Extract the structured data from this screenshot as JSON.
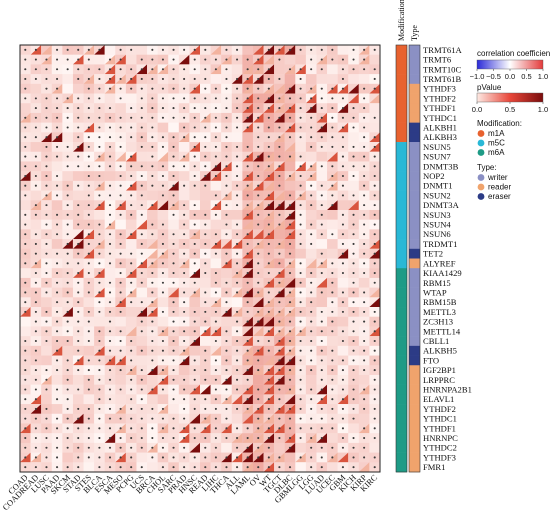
{
  "chart_data": {
    "type": "heatmap",
    "title": "",
    "rows": [
      "TRMT61A",
      "TRMT6",
      "TRMT10C",
      "TRMT61B",
      "YTHDF3",
      "YTHDF2",
      "YTHDF1",
      "YTHDC1",
      "ALKBH1",
      "ALKBH3",
      "NSUN5",
      "NSUN7",
      "DNMT3B",
      "NOP2",
      "DNMT1",
      "NSUN2",
      "DNMT3A",
      "NSUN3",
      "NSUN4",
      "NSUN6",
      "TRDMT1",
      "TET2",
      "ALYREF",
      "KIAA1429",
      "RBM15",
      "WTAP",
      "RBM15B",
      "METTL3",
      "ZC3H13",
      "METTL14",
      "CBLL1",
      "ALKBH5",
      "FTO",
      "IGF2BP1",
      "LRPPRC",
      "HNRNPA2B1",
      "ELAVL1",
      "YTHDF2",
      "YTHDC1",
      "YTHDF1",
      "HNRNPC",
      "YTHDC2",
      "YTHDF3",
      "FMR1"
    ],
    "columns": [
      "COAD",
      "COADREAD",
      "LUSC",
      "PAAD",
      "SKCM",
      "STAD",
      "STES",
      "BLCA",
      "ESCA",
      "MESO",
      "PCPG",
      "UCS",
      "BRCA",
      "CHOL",
      "SARC",
      "PRAD",
      "HNSC",
      "READ",
      "LIHC",
      "THCA",
      "ALL",
      "LAML",
      "OV",
      "WT",
      "TGCT",
      "DLBC",
      "GBMLGG",
      "LGG",
      "LUAD",
      "UCEC",
      "GBM",
      "KICH",
      "KIRP",
      "KIRC"
    ],
    "row_modification": [
      "m1A",
      "m1A",
      "m1A",
      "m1A",
      "m1A",
      "m1A",
      "m1A",
      "m1A",
      "m1A",
      "m1A",
      "m5C",
      "m5C",
      "m5C",
      "m5C",
      "m5C",
      "m5C",
      "m5C",
      "m5C",
      "m5C",
      "m5C",
      "m5C",
      "m5C",
      "m5C",
      "m6A",
      "m6A",
      "m6A",
      "m6A",
      "m6A",
      "m6A",
      "m6A",
      "m6A",
      "m6A",
      "m6A",
      "m6A",
      "m6A",
      "m6A",
      "m6A",
      "m6A",
      "m6A",
      "m6A",
      "m6A",
      "m6A",
      "m6A",
      "m6A"
    ],
    "row_type": [
      "writer",
      "writer",
      "writer",
      "writer",
      "reader",
      "reader",
      "reader",
      "reader",
      "eraser",
      "eraser",
      "writer",
      "writer",
      "writer",
      "writer",
      "writer",
      "writer",
      "writer",
      "writer",
      "writer",
      "writer",
      "writer",
      "eraser",
      "reader",
      "writer",
      "writer",
      "writer",
      "writer",
      "writer",
      "writer",
      "writer",
      "writer",
      "eraser",
      "eraser",
      "reader",
      "reader",
      "reader",
      "reader",
      "reader",
      "reader",
      "reader",
      "reader",
      "reader",
      "reader",
      "reader"
    ],
    "strip_labels": {
      "modification": "Modification",
      "type": "Type"
    },
    "cell_glyph": "•",
    "legend": {
      "correlation": {
        "title": "correlation coefficient",
        "ticks": [
          "−1.0",
          "−0.5",
          "0.0",
          "0.5",
          "1.0"
        ],
        "range": [
          -1,
          1
        ],
        "colors": [
          "#2a2ad8",
          "#ffffff",
          "#e33a3a"
        ]
      },
      "pvalue": {
        "title": "pValue",
        "ticks": [
          "0.0",
          "0.5",
          "1.0"
        ],
        "range": [
          0,
          1
        ],
        "colors": [
          "#fde9e3",
          "#e8473a",
          "#7a0d0d"
        ]
      },
      "modification": {
        "title": "Modification:",
        "items": [
          {
            "label": "m1A",
            "color": "#e8622f"
          },
          {
            "label": "m5C",
            "color": "#29b8d6"
          },
          {
            "label": "m6A",
            "color": "#1e9b86"
          }
        ]
      },
      "type": {
        "title": "Type:",
        "items": [
          {
            "label": "writer",
            "color": "#8b90c4"
          },
          {
            "label": "reader",
            "color": "#f0a36c"
          },
          {
            "label": "eraser",
            "color": "#2c3b86"
          }
        ]
      }
    }
  }
}
